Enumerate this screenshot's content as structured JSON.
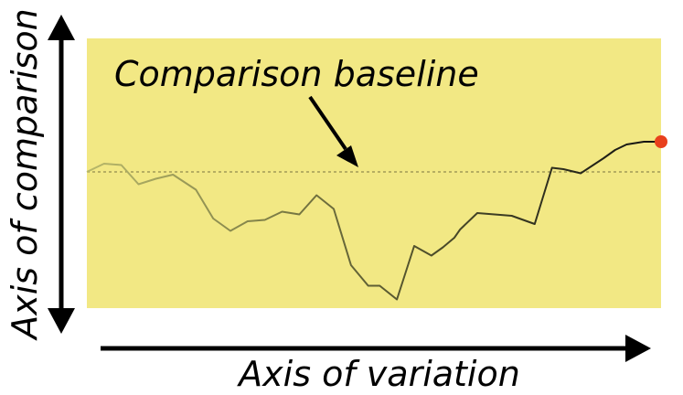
{
  "labels": {
    "baseline": "Comparison baseline",
    "x_axis": "Axis of variation",
    "y_axis": "Axis of comparison"
  },
  "colors": {
    "background": "#ffffff",
    "panel": "#f2e884",
    "axis": "#000000",
    "line_start": "#b8b86a",
    "line_end": "#111111",
    "endpoint": "#e8401c",
    "baseline": "#7a7440"
  },
  "chart_data": {
    "type": "line",
    "title": "",
    "xlabel": "Axis of variation",
    "ylabel": "Axis of comparison",
    "xlim": [
      0,
      100
    ],
    "ylim": [
      -1,
      1
    ],
    "grid": false,
    "baseline": 0,
    "series": [
      {
        "x": [
          0,
          3,
          6,
          9,
          12,
          15,
          19,
          22,
          25,
          28,
          31,
          34,
          37,
          40,
          43,
          46,
          49,
          51,
          54,
          57,
          60,
          62,
          64,
          65,
          68,
          71,
          74,
          78,
          81,
          83,
          86,
          90,
          92,
          94,
          97,
          100
        ],
        "y": [
          0.0,
          0.06,
          0.05,
          -0.09,
          -0.05,
          -0.02,
          -0.13,
          -0.34,
          -0.43,
          -0.36,
          -0.35,
          -0.29,
          -0.31,
          -0.17,
          -0.27,
          -0.68,
          -0.83,
          -0.83,
          -0.93,
          -0.54,
          -0.61,
          -0.55,
          -0.48,
          -0.42,
          -0.3,
          -0.31,
          -0.32,
          -0.38,
          0.03,
          0.02,
          -0.01,
          0.1,
          0.16,
          0.2,
          0.22,
          0.22
        ]
      }
    ]
  }
}
